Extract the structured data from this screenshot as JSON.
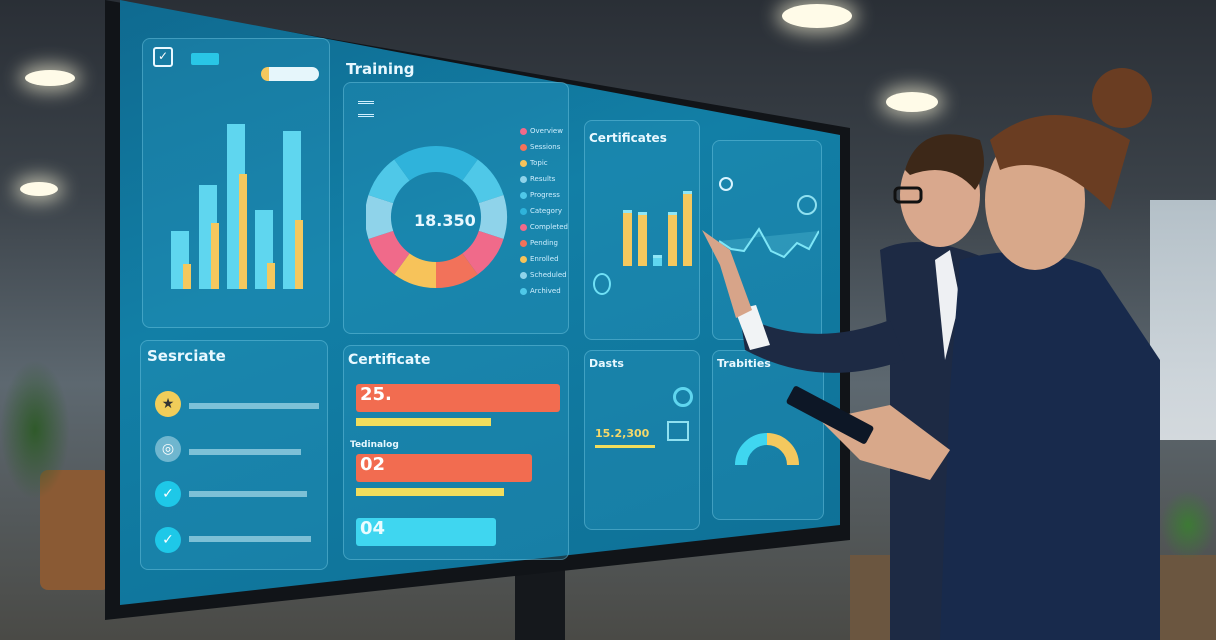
{
  "screen": {
    "training": {
      "title": "Training",
      "donut_value": "18.350",
      "legend": [
        "Overview",
        "Sessions",
        "Topic",
        "Results",
        "Progress",
        "Category",
        "Completed",
        "Pending",
        "Enrolled",
        "Scheduled",
        "Archived"
      ],
      "segments_colors": [
        "#f06a8a",
        "#f2725a",
        "#f7c35a",
        "#8fd3ea",
        "#4fc8e8",
        "#2fb3db"
      ]
    },
    "left_chart": {
      "pairs": [
        [
          0.35,
          0.15
        ],
        [
          0.63,
          0.4
        ],
        [
          1.0,
          0.7
        ],
        [
          0.48,
          0.16
        ],
        [
          0.96,
          0.42
        ]
      ],
      "colors": {
        "primary": "#5fd6ef",
        "secondary": "#f4c85e"
      }
    },
    "certificates": {
      "title": "Certificates",
      "bars": [
        0.75,
        0.72,
        0.15,
        0.72,
        1.0
      ]
    },
    "sesrciate": {
      "title": "Sesrciate",
      "items": [
        {
          "icon": "award-icon"
        },
        {
          "icon": "globe-icon"
        },
        {
          "icon": "check-icon"
        },
        {
          "icon": "check-icon"
        }
      ]
    },
    "certificate": {
      "title": "Certificate",
      "rows": [
        {
          "num": "25.",
          "fill": 0.95,
          "progress": 0.78
        },
        {
          "num": "02",
          "fill": 0.82,
          "progress": 0.85
        },
        {
          "num": "04",
          "fill": 0.65
        }
      ],
      "subtitle": "Tedinalog",
      "bar_color": "#f26c50",
      "progress_color": "#f1dd5c",
      "cyan": "#3fd6f0"
    },
    "dasts": {
      "title": "Dasts",
      "value": "15.2,300"
    },
    "trabities": {
      "title": "Trabities",
      "gauge": 0.5
    }
  }
}
